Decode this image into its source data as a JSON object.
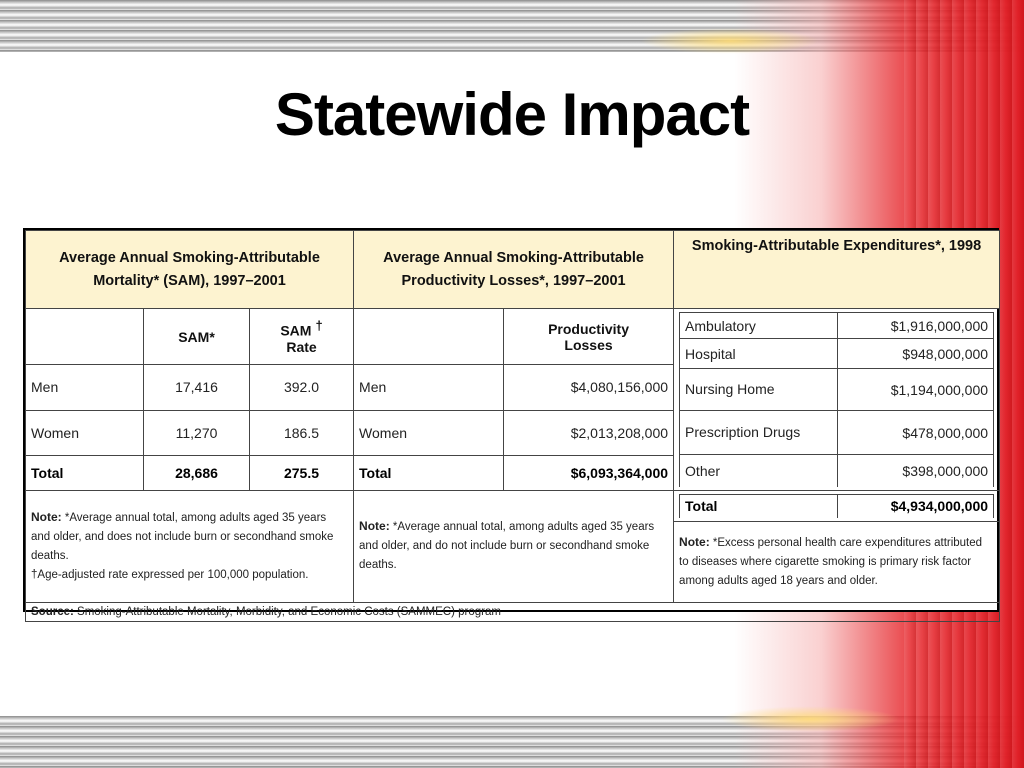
{
  "slide": {
    "title": "Statewide Impact"
  },
  "mortality": {
    "header": "Average Annual Smoking-Attributable Mortality* (SAM), 1997–2001",
    "col_sam": "SAM*",
    "col_rate_a": "SAM",
    "col_rate_b": "Rate",
    "dagger": "†",
    "rows": [
      {
        "label": "Men",
        "sam": "17,416",
        "rate": "392.0"
      },
      {
        "label": "Women",
        "sam": "11,270",
        "rate": "186.5"
      }
    ],
    "total": {
      "label": "Total",
      "sam": "28,686",
      "rate": "275.5"
    },
    "note_label": "Note:",
    "note_line1": " *Average annual total, among adults aged 35 years and older, and does not include burn or secondhand smoke deaths.",
    "note_line2": "†Age-adjusted rate expressed per 100,000 population."
  },
  "productivity": {
    "header": "Average Annual Smoking-Attributable Productivity Losses*, 1997–2001",
    "col_losses_a": "Productivity",
    "col_losses_b": "Losses",
    "rows": [
      {
        "label": "Men",
        "value": "$4,080,156,000"
      },
      {
        "label": "Women",
        "value": "$2,013,208,000"
      }
    ],
    "total": {
      "label": "Total",
      "value": "$6,093,364,000"
    },
    "note_label": "Note:",
    "note_text": " *Average annual total, among adults aged 35 years and older, and do not include burn or secondhand smoke deaths."
  },
  "expenditures": {
    "header": "Smoking-Attributable Expenditures*, 1998",
    "rows": [
      {
        "label": "Ambulatory",
        "value": "$1,916,000,000"
      },
      {
        "label": "Hospital",
        "value": "$948,000,000"
      },
      {
        "label": "Nursing Home",
        "value": "$1,194,000,000"
      },
      {
        "label": "Prescription Drugs",
        "value": "$478,000,000"
      },
      {
        "label": "Other",
        "value": "$398,000,000"
      }
    ],
    "total": {
      "label": "Total",
      "value": "$4,934,000,000"
    },
    "note_label": "Note:",
    "note_text": " *Excess personal health care expenditures attributed to diseases where cigarette smoking is primary risk factor among adults aged 18 years and older."
  },
  "source": {
    "label": "Source:",
    "text": " Smoking-Attributable Mortality, Morbidity, and Economic Costs (SAMMEC) program"
  }
}
